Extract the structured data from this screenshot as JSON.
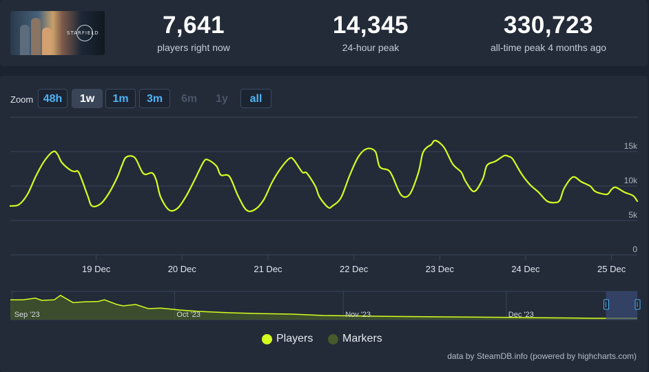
{
  "header": {
    "game_logo_text": "STARFIELD",
    "stats": [
      {
        "value": "7,641",
        "label": "players right now"
      },
      {
        "value": "14,345",
        "label": "24-hour peak"
      },
      {
        "value": "330,723",
        "label": "all-time peak 4 months ago"
      }
    ]
  },
  "zoom": {
    "label": "Zoom",
    "buttons": [
      {
        "label": "48h",
        "state": "normal"
      },
      {
        "label": "1w",
        "state": "active"
      },
      {
        "label": "1m",
        "state": "normal"
      },
      {
        "label": "3m",
        "state": "normal"
      },
      {
        "label": "6m",
        "state": "disabled"
      },
      {
        "label": "1y",
        "state": "disabled"
      },
      {
        "label": "all",
        "state": "normal"
      }
    ]
  },
  "colors": {
    "series": "#d6ff1f",
    "markers": "#465a2b",
    "accent": "#4fb3f6",
    "grid": "#3a4556",
    "navigator_mask": "#3b4b78"
  },
  "chart_data": [
    {
      "type": "line",
      "series": [
        {
          "name": "Players",
          "x": [
            18.0,
            18.1,
            18.2,
            18.3,
            18.4,
            18.5,
            18.55,
            18.6,
            18.7,
            18.75,
            18.8,
            18.9,
            18.95,
            19.05,
            19.15,
            19.25,
            19.3,
            19.35,
            19.45,
            19.55,
            19.65,
            19.7,
            19.75,
            19.85,
            19.95,
            20.05,
            20.15,
            20.25,
            20.3,
            20.4,
            20.45,
            20.55,
            20.65,
            20.75,
            20.85,
            20.95,
            21.05,
            21.15,
            21.25,
            21.3,
            21.4,
            21.45,
            21.55,
            21.6,
            21.7,
            21.75,
            21.85,
            21.95,
            22.05,
            22.15,
            22.25,
            22.3,
            22.4,
            22.45,
            22.55,
            22.65,
            22.75,
            22.8,
            22.85,
            22.9,
            22.95,
            23.05,
            23.15,
            23.25,
            23.3,
            23.4,
            23.5,
            23.55,
            23.65,
            23.75,
            23.8,
            23.85,
            23.95,
            24.05,
            24.15,
            24.25,
            24.35,
            24.4,
            24.45,
            24.55,
            24.65,
            24.75,
            24.8,
            24.85,
            24.95,
            25.0,
            25.05,
            25.15,
            25.25,
            25.3
          ],
          "y": [
            7.1,
            7.3,
            8.8,
            11.5,
            13.7,
            15.0,
            14.6,
            13.4,
            12.3,
            12.1,
            11.9,
            8.6,
            7.1,
            7.4,
            9.0,
            11.4,
            13.0,
            14.2,
            14.1,
            11.8,
            11.9,
            10.8,
            8.4,
            6.5,
            6.8,
            8.6,
            11.0,
            13.5,
            13.8,
            12.9,
            11.6,
            11.4,
            8.6,
            6.5,
            6.6,
            8.0,
            10.6,
            12.6,
            14.0,
            13.8,
            12.0,
            11.9,
            10.0,
            8.4,
            6.9,
            7.1,
            8.3,
            11.5,
            14.2,
            15.4,
            15.0,
            12.8,
            12.3,
            11.4,
            8.7,
            8.8,
            11.9,
            14.7,
            15.6,
            16.0,
            16.6,
            15.6,
            13.2,
            12.0,
            10.7,
            9.2,
            11.0,
            13.0,
            13.6,
            14.4,
            14.3,
            13.9,
            11.8,
            10.2,
            9.1,
            7.8,
            7.6,
            8.0,
            9.7,
            11.3,
            10.6,
            10.0,
            9.3,
            9.0,
            8.8,
            9.5,
            9.8,
            9.1,
            8.6,
            7.8
          ]
        }
      ],
      "x_ticks": [
        "19 Dec",
        "20 Dec",
        "21 Dec",
        "22 Dec",
        "23 Dec",
        "24 Dec",
        "25 Dec"
      ],
      "y_ticks": [
        "0",
        "5k",
        "10k",
        "15k"
      ],
      "ylim": [
        0,
        20
      ],
      "grid": true,
      "legend_placement": "bottom-center"
    },
    {
      "type": "area",
      "series": [
        {
          "name": "Players",
          "x": [
            0.0,
            0.02,
            0.04,
            0.05,
            0.07,
            0.08,
            0.1,
            0.12,
            0.14,
            0.15,
            0.17,
            0.18,
            0.2,
            0.22,
            0.24,
            0.27,
            0.3,
            0.35,
            0.4,
            0.45,
            0.5,
            0.6,
            0.7,
            0.8,
            0.9,
            0.93,
            0.96,
            1.0
          ],
          "y": [
            0.72,
            0.72,
            0.78,
            0.7,
            0.72,
            0.88,
            0.62,
            0.65,
            0.66,
            0.72,
            0.55,
            0.5,
            0.55,
            0.4,
            0.42,
            0.35,
            0.3,
            0.25,
            0.22,
            0.2,
            0.15,
            0.12,
            0.1,
            0.08,
            0.06,
            0.05,
            0.05,
            0.05
          ]
        }
      ],
      "x_ticks": [
        "Sep '23",
        "Oct '23",
        "Nov '23",
        "Dec '23"
      ],
      "selected_range": [
        0.95,
        1.0
      ]
    }
  ],
  "legend": [
    {
      "name": "Players"
    },
    {
      "name": "Markers"
    }
  ],
  "credits": "data by SteamDB.info (powered by highcharts.com)"
}
